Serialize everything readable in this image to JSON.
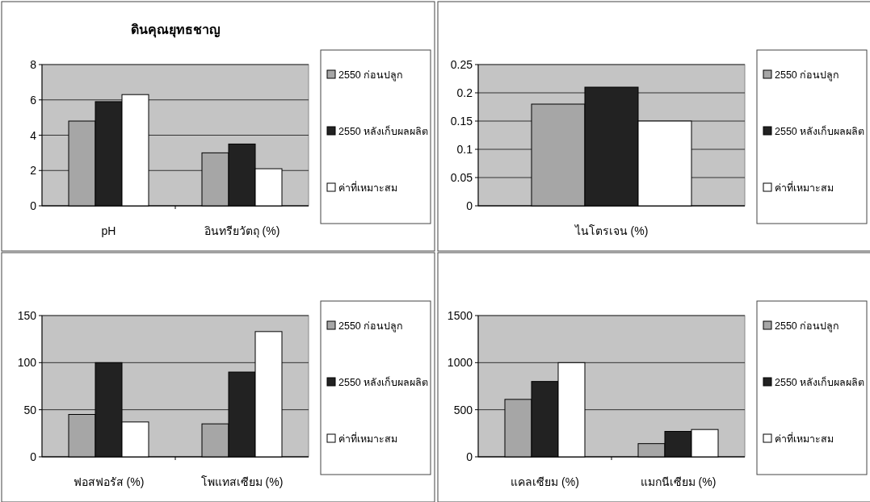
{
  "chart_data": [
    {
      "type": "bar",
      "title": "ดินคุณยุทธชาญ",
      "categories": [
        "pH",
        "อินทรียวัตถุ (%)"
      ],
      "series": [
        {
          "name": "2550 ก่อนปลูก",
          "color": "#a6a6a6",
          "values": [
            4.8,
            3.0
          ]
        },
        {
          "name": "2550 หลังเก็บผลผลิต",
          "color": "#222222",
          "values": [
            5.9,
            3.5
          ]
        },
        {
          "name": "ค่าที่เหมาะสม",
          "color": "#ffffff",
          "values": [
            6.3,
            2.1
          ]
        }
      ],
      "ylim": [
        0,
        8
      ],
      "yticks": [
        0,
        2,
        4,
        6,
        8
      ],
      "grid": "y",
      "legend": "right"
    },
    {
      "type": "bar",
      "categories": [
        "ไนโตรเจน (%)"
      ],
      "series": [
        {
          "name": "2550 ก่อนปลูก",
          "color": "#a6a6a6",
          "values": [
            0.18
          ]
        },
        {
          "name": "2550 หลังเก็บผลผลิต",
          "color": "#222222",
          "values": [
            0.21
          ]
        },
        {
          "name": "ค่าที่เหมาะสม",
          "color": "#ffffff",
          "values": [
            0.15
          ]
        }
      ],
      "ylim": [
        0,
        0.25
      ],
      "yticks": [
        0,
        0.05,
        0.1,
        0.15,
        0.2,
        0.25
      ],
      "grid": "y",
      "legend": "right"
    },
    {
      "type": "bar",
      "categories": [
        "ฟอสฟอรัส (%)",
        "โพแทสเซียม (%)"
      ],
      "series": [
        {
          "name": "2550 ก่อนปลูก",
          "color": "#a6a6a6",
          "values": [
            45,
            35
          ]
        },
        {
          "name": "2550 หลังเก็บผลผลิต",
          "color": "#222222",
          "values": [
            100,
            90
          ]
        },
        {
          "name": "ค่าที่เหมาะสม",
          "color": "#ffffff",
          "values": [
            37,
            133
          ]
        }
      ],
      "ylim": [
        0,
        150
      ],
      "yticks": [
        0,
        50,
        100,
        150
      ],
      "grid": "y",
      "legend": "right"
    },
    {
      "type": "bar",
      "categories": [
        "แคลเซียม (%)",
        "แมกนีเซียม (%)"
      ],
      "series": [
        {
          "name": "2550 ก่อนปลูก",
          "color": "#a6a6a6",
          "values": [
            610,
            140
          ]
        },
        {
          "name": "2550 หลังเก็บผลผลิต",
          "color": "#222222",
          "values": [
            800,
            270
          ]
        },
        {
          "name": "ค่าที่เหมาะสม",
          "color": "#ffffff",
          "values": [
            1000,
            290
          ]
        }
      ],
      "ylim": [
        0,
        1500
      ],
      "yticks": [
        0,
        500,
        1000,
        1500
      ],
      "grid": "y",
      "legend": "right"
    }
  ]
}
